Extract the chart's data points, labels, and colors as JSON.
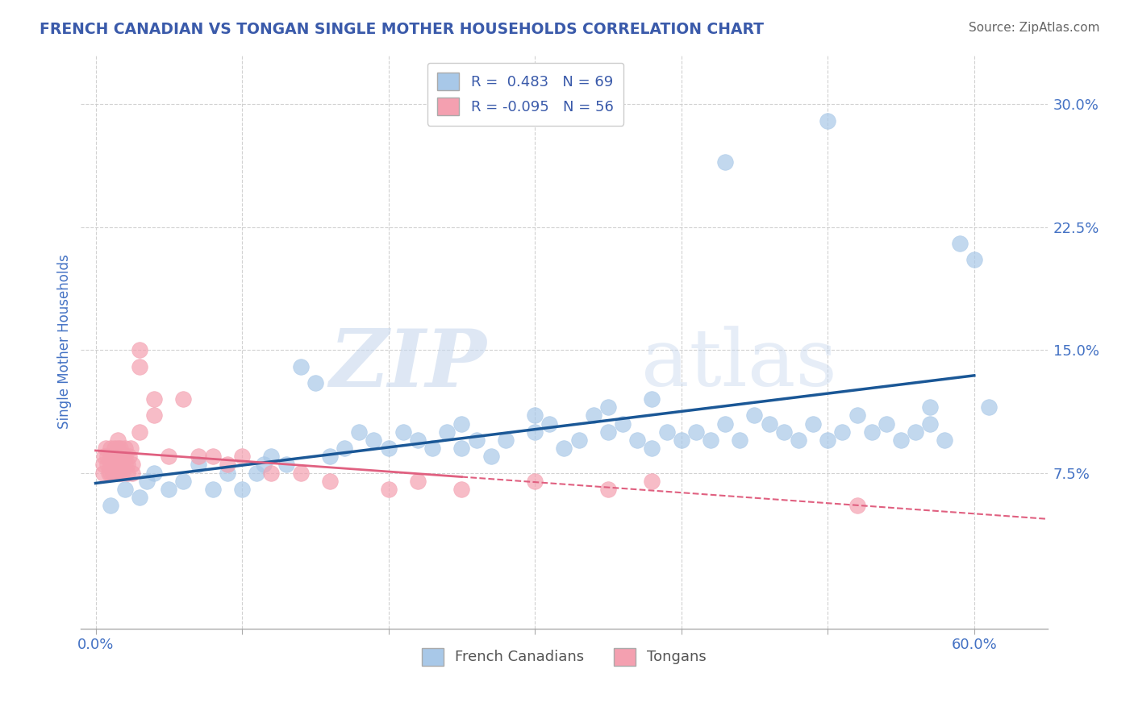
{
  "title": "FRENCH CANADIAN VS TONGAN SINGLE MOTHER HOUSEHOLDS CORRELATION CHART",
  "source": "Source: ZipAtlas.com",
  "ylabel": "Single Mother Households",
  "yticks": [
    "7.5%",
    "15.0%",
    "22.5%",
    "30.0%"
  ],
  "ytick_vals": [
    0.075,
    0.15,
    0.225,
    0.3
  ],
  "xlim": [
    0.0,
    0.63
  ],
  "ylim": [
    -0.02,
    0.33
  ],
  "legend_blue": "R =  0.483   N = 69",
  "legend_pink": "R = -0.095   N = 56",
  "blue_scatter_color": "#a8c8e8",
  "pink_scatter_color": "#f4a0b0",
  "blue_line_color": "#1a5796",
  "pink_line_color": "#e06080",
  "title_color": "#3a5aaa",
  "tick_color": "#4472c4",
  "watermark1": "ZIP",
  "watermark2": "atlas",
  "fc_x": [
    0.01,
    0.02,
    0.03,
    0.035,
    0.04,
    0.05,
    0.06,
    0.07,
    0.08,
    0.09,
    0.1,
    0.11,
    0.115,
    0.12,
    0.13,
    0.14,
    0.15,
    0.16,
    0.17,
    0.18,
    0.19,
    0.2,
    0.21,
    0.22,
    0.23,
    0.24,
    0.25,
    0.26,
    0.27,
    0.28,
    0.3,
    0.31,
    0.32,
    0.33,
    0.34,
    0.35,
    0.36,
    0.37,
    0.38,
    0.39,
    0.4,
    0.41,
    0.42,
    0.43,
    0.44,
    0.45,
    0.46,
    0.47,
    0.48,
    0.49,
    0.5,
    0.51,
    0.52,
    0.53,
    0.54,
    0.55,
    0.56,
    0.57,
    0.57,
    0.58,
    0.59,
    0.6,
    0.61,
    0.5,
    0.43,
    0.38,
    0.35,
    0.3,
    0.25
  ],
  "fc_y": [
    0.055,
    0.065,
    0.06,
    0.07,
    0.075,
    0.065,
    0.07,
    0.08,
    0.065,
    0.075,
    0.065,
    0.075,
    0.08,
    0.085,
    0.08,
    0.14,
    0.13,
    0.085,
    0.09,
    0.1,
    0.095,
    0.09,
    0.1,
    0.095,
    0.09,
    0.1,
    0.09,
    0.095,
    0.085,
    0.095,
    0.1,
    0.105,
    0.09,
    0.095,
    0.11,
    0.1,
    0.105,
    0.095,
    0.09,
    0.1,
    0.095,
    0.1,
    0.095,
    0.105,
    0.095,
    0.11,
    0.105,
    0.1,
    0.095,
    0.105,
    0.095,
    0.1,
    0.11,
    0.1,
    0.105,
    0.095,
    0.1,
    0.105,
    0.115,
    0.095,
    0.215,
    0.205,
    0.115,
    0.29,
    0.265,
    0.12,
    0.115,
    0.11,
    0.105
  ],
  "tg_x": [
    0.005,
    0.005,
    0.006,
    0.007,
    0.008,
    0.008,
    0.009,
    0.01,
    0.01,
    0.01,
    0.01,
    0.012,
    0.012,
    0.013,
    0.013,
    0.014,
    0.015,
    0.015,
    0.015,
    0.016,
    0.016,
    0.017,
    0.017,
    0.018,
    0.018,
    0.019,
    0.02,
    0.02,
    0.02,
    0.022,
    0.022,
    0.023,
    0.024,
    0.025,
    0.025,
    0.03,
    0.03,
    0.03,
    0.04,
    0.04,
    0.05,
    0.06,
    0.07,
    0.08,
    0.09,
    0.1,
    0.12,
    0.14,
    0.16,
    0.2,
    0.22,
    0.25,
    0.3,
    0.35,
    0.38,
    0.52
  ],
  "tg_y": [
    0.075,
    0.08,
    0.085,
    0.09,
    0.08,
    0.085,
    0.075,
    0.075,
    0.08,
    0.085,
    0.09,
    0.075,
    0.08,
    0.085,
    0.09,
    0.075,
    0.08,
    0.09,
    0.095,
    0.075,
    0.08,
    0.085,
    0.09,
    0.075,
    0.08,
    0.085,
    0.09,
    0.085,
    0.08,
    0.075,
    0.08,
    0.085,
    0.09,
    0.075,
    0.08,
    0.14,
    0.15,
    0.1,
    0.11,
    0.12,
    0.085,
    0.12,
    0.085,
    0.085,
    0.08,
    0.085,
    0.075,
    0.075,
    0.07,
    0.065,
    0.07,
    0.065,
    0.07,
    0.065,
    0.07,
    0.055
  ]
}
